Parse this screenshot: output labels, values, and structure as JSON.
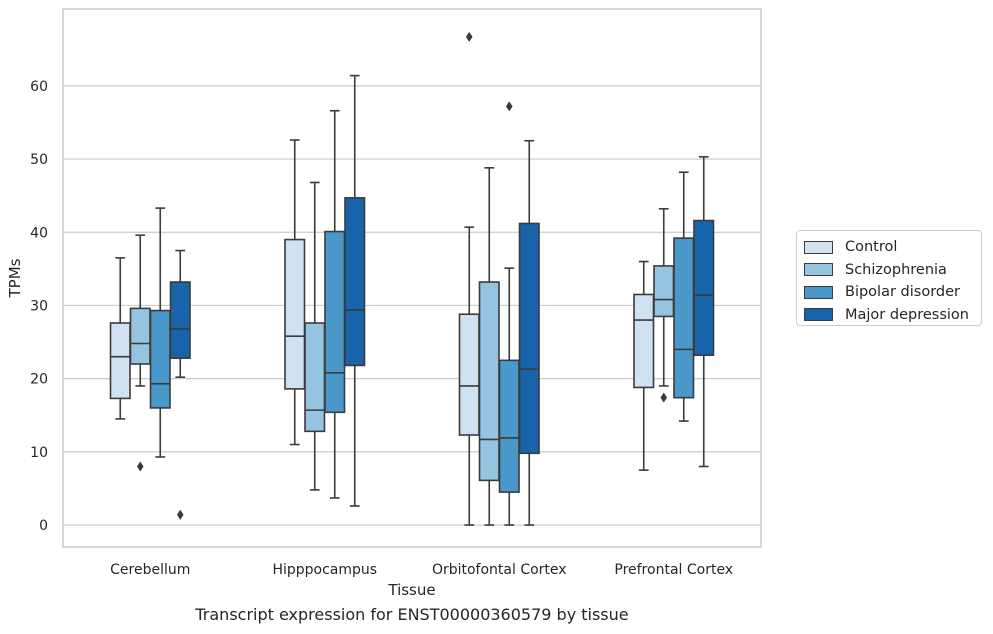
{
  "chart_data": {
    "type": "box",
    "title": "Transcript expression for ENST00000360579 by tissue",
    "xlabel": "Tissue",
    "ylabel": "TPMs",
    "ylim": [
      -3,
      70.5
    ],
    "yticks": [
      0,
      10,
      20,
      30,
      40,
      50,
      60
    ],
    "grid": "horizontal",
    "legend_position": "right",
    "categories": [
      "Cerebellum",
      "Hipppocampus",
      "Orbitofontal Cortex",
      "Prefrontal Cortex"
    ],
    "series": [
      {
        "name": "Control",
        "color": "#d0e1f2",
        "boxes": [
          {
            "whislo": 14.5,
            "q1": 17.3,
            "med": 23.0,
            "q3": 27.6,
            "whishi": 36.5,
            "fliers": []
          },
          {
            "whislo": 11.0,
            "q1": 18.6,
            "med": 25.8,
            "q3": 39.0,
            "whishi": 52.6,
            "fliers": []
          },
          {
            "whislo": 0.0,
            "q1": 12.3,
            "med": 19.0,
            "q3": 28.8,
            "whishi": 40.7,
            "fliers": [
              66.7
            ]
          },
          {
            "whislo": 7.5,
            "q1": 18.8,
            "med": 28.0,
            "q3": 31.5,
            "whishi": 36.0,
            "fliers": []
          }
        ]
      },
      {
        "name": "Schizophrenia",
        "color": "#94c4df",
        "boxes": [
          {
            "whislo": 19.0,
            "q1": 22.0,
            "med": 24.8,
            "q3": 29.6,
            "whishi": 39.6,
            "fliers": [
              8.0
            ]
          },
          {
            "whislo": 4.8,
            "q1": 12.8,
            "med": 15.7,
            "q3": 27.6,
            "whishi": 46.8,
            "fliers": []
          },
          {
            "whislo": 0.0,
            "q1": 6.1,
            "med": 11.7,
            "q3": 33.2,
            "whishi": 48.8,
            "fliers": []
          },
          {
            "whislo": 19.0,
            "q1": 28.5,
            "med": 30.8,
            "q3": 35.4,
            "whishi": 43.2,
            "fliers": [
              17.4
            ]
          }
        ]
      },
      {
        "name": "Bipolar disorder",
        "color": "#4a98c9",
        "boxes": [
          {
            "whislo": 9.3,
            "q1": 16.0,
            "med": 19.3,
            "q3": 29.3,
            "whishi": 43.3,
            "fliers": []
          },
          {
            "whislo": 3.7,
            "q1": 15.4,
            "med": 20.8,
            "q3": 40.1,
            "whishi": 56.6,
            "fliers": []
          },
          {
            "whislo": 0.0,
            "q1": 4.5,
            "med": 11.9,
            "q3": 22.5,
            "whishi": 35.1,
            "fliers": [
              57.2
            ]
          },
          {
            "whislo": 14.2,
            "q1": 17.4,
            "med": 24.0,
            "q3": 39.2,
            "whishi": 48.2,
            "fliers": []
          }
        ]
      },
      {
        "name": "Major depression",
        "color": "#1764ab",
        "boxes": [
          {
            "whislo": 20.2,
            "q1": 22.8,
            "med": 26.8,
            "q3": 33.2,
            "whishi": 37.5,
            "fliers": [
              1.4
            ]
          },
          {
            "whislo": 2.6,
            "q1": 21.8,
            "med": 29.4,
            "q3": 44.7,
            "whishi": 61.4,
            "fliers": []
          },
          {
            "whislo": 0.0,
            "q1": 9.8,
            "med": 21.3,
            "q3": 41.2,
            "whishi": 52.5,
            "fliers": []
          },
          {
            "whislo": 8.0,
            "q1": 23.2,
            "med": 31.4,
            "q3": 41.6,
            "whishi": 50.3,
            "fliers": []
          }
        ]
      }
    ]
  }
}
